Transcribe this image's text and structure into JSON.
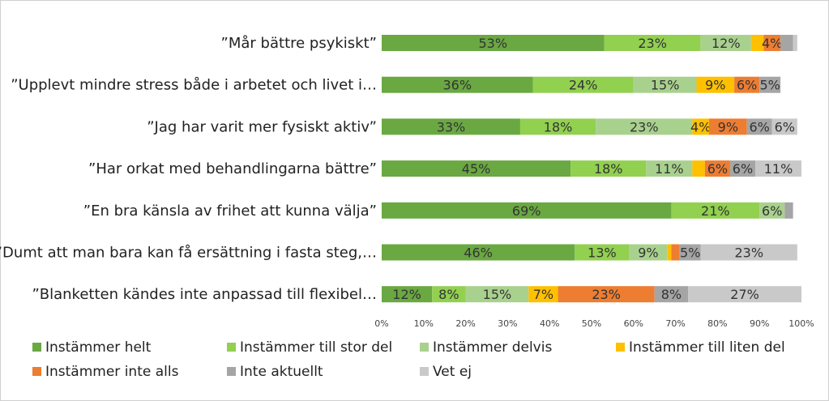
{
  "chart_data": {
    "type": "bar",
    "orientation": "horizontal",
    "stacked": true,
    "percent": true,
    "categories": [
      "”Mår bättre psykiskt”",
      "”Upplevt mindre stress både i arbetet och livet i…",
      "”Jag har varit mer fysiskt aktiv”",
      "”Har orkat med behandlingarna bättre”",
      "”En bra känsla av frihet att kunna välja”",
      "”Dumt att man bara kan få ersättning i fasta steg,…",
      "”Blanketten kändes inte anpassad till flexibel…"
    ],
    "series": [
      {
        "name": "Instämmer helt",
        "color": "#6aa842",
        "values": [
          53,
          36,
          33,
          45,
          69,
          46,
          12
        ]
      },
      {
        "name": "Instämmer till stor del",
        "color": "#92d050",
        "values": [
          23,
          24,
          18,
          18,
          21,
          13,
          8
        ]
      },
      {
        "name": "Instämmer delvis",
        "color": "#a9d18e",
        "values": [
          12,
          15,
          23,
          11,
          6,
          9,
          15
        ]
      },
      {
        "name": "Instämmer till liten del",
        "color": "#ffc000",
        "values": [
          3,
          9,
          4,
          3,
          0,
          1,
          7
        ]
      },
      {
        "name": "Instämmer inte alls",
        "color": "#ed7d31",
        "values": [
          4,
          6,
          9,
          6,
          0,
          2,
          23
        ]
      },
      {
        "name": "Inte aktuellt",
        "color": "#a5a5a5",
        "values": [
          3,
          5,
          6,
          6,
          2,
          5,
          8
        ]
      },
      {
        "name": "Vet ej",
        "color": "#c9c9c9",
        "values": [
          1,
          0,
          6,
          11,
          0,
          23,
          27
        ]
      }
    ],
    "value_labels": [
      [
        "53%",
        "23%",
        "12%",
        "",
        "4%",
        "",
        ""
      ],
      [
        "36%",
        "24%",
        "15%",
        "9%",
        "6%",
        "5%",
        ""
      ],
      [
        "33%",
        "18%",
        "23%",
        "4%",
        "9%",
        "6%",
        "6%"
      ],
      [
        "45%",
        "18%",
        "11%",
        "",
        "6%",
        "6%",
        "11%"
      ],
      [
        "69%",
        "21%",
        "6%",
        "",
        "",
        "",
        ""
      ],
      [
        "46%",
        "13%",
        "9%",
        "",
        "",
        "5%",
        "23%"
      ],
      [
        "12%",
        "8%",
        "15%",
        "7%",
        "23%",
        "8%",
        "27%"
      ]
    ],
    "x_ticks": [
      "0%",
      "10%",
      "20%",
      "30%",
      "40%",
      "50%",
      "60%",
      "70%",
      "80%",
      "90%",
      "100%"
    ],
    "xlim": [
      0,
      100
    ],
    "grid": false,
    "legend_position": "bottom"
  }
}
